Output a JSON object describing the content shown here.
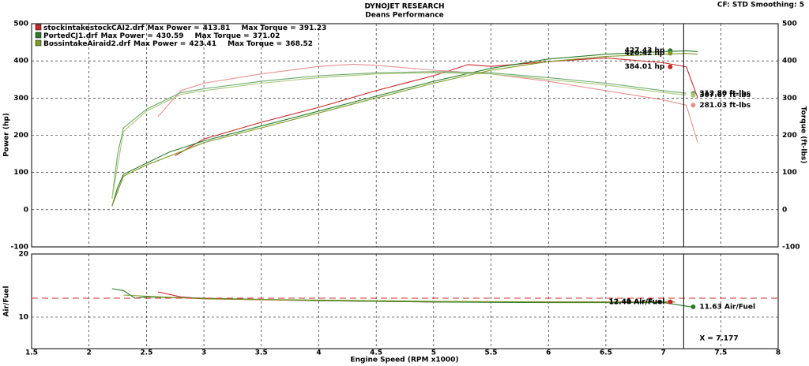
{
  "header": {
    "title": "DYNOJET RESEARCH",
    "subtitle": "Deans Performance",
    "settings": "CF: STD  Smoothing: 5"
  },
  "chart_data": [
    {
      "type": "line",
      "ylabel": "Power (hp)",
      "y2label": "Torque (ft-lbs)",
      "xlim": [
        1.5,
        8.0
      ],
      "ylim": [
        -100,
        500
      ],
      "yticks": [
        -100,
        0,
        100,
        200,
        300,
        400,
        500
      ],
      "y2lim": [
        -100,
        500
      ],
      "y2ticks": [
        -100,
        0,
        100,
        200,
        300,
        400,
        500
      ],
      "grid": true,
      "max_power_label": "Max Power =",
      "max_torque_label": "Max Torque =",
      "series": [
        {
          "name": "stockintakestockCAI2.drf",
          "color": "#c8282a",
          "max_power": 413.81,
          "max_torque": 391.23,
          "power": {
            "color": "#c8282a",
            "x": [
              2.75,
              3.0,
              3.5,
              4.0,
              4.5,
              5.0,
              5.3,
              5.5,
              6.0,
              6.5,
              7.0,
              7.2,
              7.3
            ],
            "values": [
              145,
              190,
              235,
              275,
              320,
              360,
              390,
              385,
              398,
              408,
              395,
              384,
              300
            ]
          },
          "torque": {
            "axis": "y2",
            "color": "#e89090",
            "x": [
              2.6,
              2.8,
              3.0,
              3.5,
              4.0,
              4.3,
              4.5,
              5.0,
              5.5,
              6.0,
              6.5,
              7.0,
              7.2,
              7.3
            ],
            "values": [
              250,
              320,
              340,
              365,
              385,
              391,
              388,
              375,
              365,
              345,
              320,
              295,
              281,
              180
            ]
          }
        },
        {
          "name": "PortedCJ1.drf",
          "color": "#2a7a2a",
          "max_power": 430.59,
          "max_torque": 371.02,
          "power": {
            "color": "#2a7a2a",
            "x": [
              2.2,
              2.25,
              2.3,
              2.5,
              2.7,
              3.0,
              3.5,
              4.0,
              4.5,
              5.0,
              5.5,
              6.0,
              6.5,
              7.0,
              7.2,
              7.3
            ],
            "values": [
              10,
              60,
              95,
              125,
              155,
              185,
              225,
              265,
              305,
              345,
              380,
              405,
              418,
              425,
              427,
              425
            ]
          },
          "torque": {
            "axis": "y2",
            "color": "#6aa86a",
            "x": [
              2.2,
              2.25,
              2.3,
              2.5,
              2.8,
              3.0,
              3.5,
              4.0,
              4.5,
              5.0,
              5.5,
              6.0,
              6.5,
              7.0,
              7.2
            ],
            "values": [
              30,
              150,
              220,
              270,
              315,
              325,
              345,
              360,
              368,
              371,
              368,
              355,
              340,
              320,
              313
            ]
          }
        },
        {
          "name": "BossintakeAiraid2.drf",
          "color": "#7a9a20",
          "max_power": 423.41,
          "max_torque": 368.52,
          "power": {
            "color": "#7a9a20",
            "x": [
              2.2,
              2.3,
              2.5,
              3.0,
              3.5,
              4.0,
              4.5,
              5.0,
              5.5,
              6.0,
              6.5,
              7.0,
              7.2,
              7.3
            ],
            "values": [
              10,
              90,
              120,
              180,
              220,
              260,
              300,
              340,
              375,
              398,
              412,
              418,
              420,
              418
            ]
          },
          "torque": {
            "axis": "y2",
            "color": "#a8c878",
            "x": [
              2.2,
              2.3,
              2.5,
              2.8,
              3.0,
              3.5,
              4.0,
              4.5,
              5.0,
              5.5,
              6.0,
              6.5,
              7.0,
              7.2
            ],
            "values": [
              30,
              210,
              265,
              310,
              320,
              340,
              355,
              365,
              368,
              365,
              350,
              335,
              315,
              308
            ]
          }
        }
      ],
      "readouts": [
        {
          "value": 427.43,
          "label": "427.43 hp",
          "x": 7.06,
          "color": "#2a7a2a"
        },
        {
          "value": 420.42,
          "label": "420.42 hp",
          "x": 7.06,
          "color": "#7a9a20"
        },
        {
          "value": 384.01,
          "label": "384.01 hp",
          "x": 7.06,
          "color": "#c8282a"
        },
        {
          "value": 312.8,
          "label": "312.80 ft-lbs",
          "x": 7.26,
          "color": "#6aa86a"
        },
        {
          "value": 307.67,
          "label": "307.67 ft-lbs",
          "x": 7.26,
          "color": "#a8c878"
        },
        {
          "value": 281.03,
          "label": "281.03 ft-lbs",
          "x": 7.26,
          "color": "#e89090"
        }
      ]
    },
    {
      "type": "line",
      "ylabel": "Air/Fuel",
      "xlabel": "Engine Speed (RPM x1000)",
      "xlim": [
        1.5,
        8.0
      ],
      "xticks": [
        1.5,
        2.0,
        2.5,
        3.0,
        3.5,
        4.0,
        4.5,
        5.0,
        5.5,
        6.0,
        6.5,
        7.0,
        7.5,
        8.0
      ],
      "ylim": [
        5,
        20
      ],
      "yticks": [
        10,
        20
      ],
      "grid": true,
      "reference_line": {
        "value": 13,
        "color": "#d03030"
      },
      "cursor": {
        "value": 7.177,
        "label": "X = 7.177"
      },
      "series": [
        {
          "color": "#c8282a",
          "x": [
            2.6,
            2.8,
            3.0,
            4.0,
            5.0,
            6.0,
            7.0,
            7.1
          ],
          "values": [
            14,
            13.2,
            12.9,
            12.6,
            12.4,
            12.4,
            12.4,
            12.41
          ]
        },
        {
          "color": "#2a7a2a",
          "x": [
            2.2,
            2.3,
            2.4,
            2.5,
            3.0,
            3.5,
            4.0,
            5.0,
            6.0,
            7.0,
            7.25
          ],
          "values": [
            14.5,
            14.2,
            13.0,
            13.2,
            13.0,
            12.8,
            12.6,
            12.4,
            12.3,
            12.3,
            11.6
          ]
        },
        {
          "color": "#7a9a20",
          "x": [
            2.3,
            2.5,
            3.0,
            4.0,
            5.0,
            6.0,
            7.0,
            7.1
          ],
          "values": [
            13.5,
            13.3,
            12.9,
            12.7,
            12.5,
            12.4,
            12.4,
            12.4
          ]
        }
      ],
      "readouts": [
        {
          "value": 12.4,
          "label": "12.40 Air/Fuel",
          "x": 7.06,
          "color": "#7a9a20"
        },
        {
          "value": 12.41,
          "label": "12.41 Air/Fuel",
          "x": 7.06,
          "color": "#c8282a"
        },
        {
          "value": 11.63,
          "label": "11.63 Air/Fuel",
          "x": 7.26,
          "color": "#2a7a2a"
        }
      ]
    }
  ]
}
